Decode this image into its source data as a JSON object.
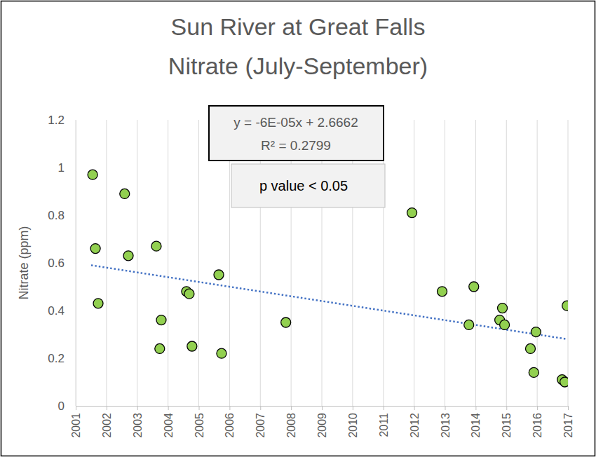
{
  "chart_data": {
    "type": "scatter",
    "title": "Sun River at Great Falls",
    "subtitle": "Nitrate (July-September)",
    "y_label": "Nitrate (ppm)",
    "annotations": [
      "y = -6E-05x + 2.6662",
      "R² = 0.2799",
      "p value < 0.05"
    ],
    "xlim": [
      2001,
      2017
    ],
    "xticks": [
      2001,
      2002,
      2003,
      2004,
      2005,
      2006,
      2007,
      2008,
      2009,
      2010,
      2011,
      2012,
      2013,
      2014,
      2015,
      2016,
      2017
    ],
    "ylim": [
      0,
      1.2
    ],
    "yticks": [
      0,
      0.2,
      0.4,
      0.6,
      0.8,
      1,
      1.2
    ],
    "grid": true,
    "series": [
      {
        "type": "scatter",
        "marker": "circle",
        "color": "#92d050",
        "x": [
          2001.55,
          2001.64,
          2001.73,
          2002.59,
          2002.71,
          2003.62,
          2003.73,
          2003.78,
          2004.6,
          2004.69,
          2004.78,
          2005.65,
          2005.74,
          2007.83,
          2011.93,
          2012.91,
          2013.78,
          2013.94,
          2014.78,
          2014.87,
          2014.94,
          2015.78,
          2015.89,
          2015.96,
          2016.81,
          2016.9,
          2016.97
        ],
        "values": [
          0.97,
          0.66,
          0.43,
          0.89,
          0.63,
          0.67,
          0.24,
          0.36,
          0.48,
          0.47,
          0.25,
          0.55,
          0.22,
          0.35,
          0.81,
          0.48,
          0.34,
          0.5,
          0.36,
          0.41,
          0.34,
          0.24,
          0.14,
          0.31,
          0.11,
          0.1,
          0.42
        ]
      },
      {
        "type": "line",
        "line_style": "dotted",
        "color": "#4472c4",
        "x": [
          2001.5,
          2016.97
        ],
        "values": [
          0.59,
          0.28
        ]
      }
    ]
  }
}
